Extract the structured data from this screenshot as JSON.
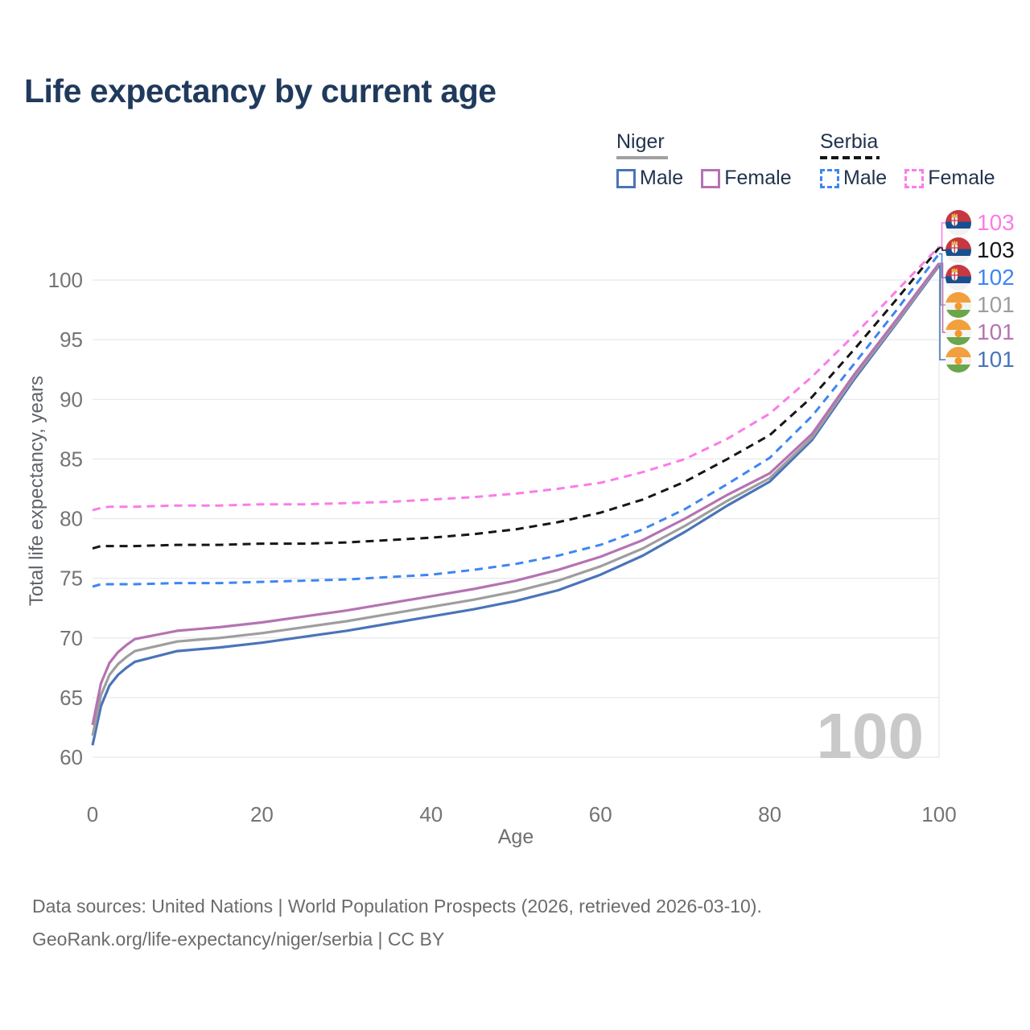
{
  "title": "Life expectancy by current age",
  "legend": {
    "groups": [
      {
        "title": "Niger",
        "line_style": "solid",
        "underline_color": "#a0a0a0",
        "items": [
          {
            "label": "Male",
            "color": "#4a74b9",
            "dashed": false
          },
          {
            "label": "Female",
            "color": "#b573b2",
            "dashed": false
          }
        ]
      },
      {
        "title": "Serbia",
        "line_style": "dashed",
        "underline_color": "#161616",
        "items": [
          {
            "label": "Male",
            "color": "#3e86f2",
            "dashed": true
          },
          {
            "label": "Female",
            "color": "#fa7ce9",
            "dashed": true
          }
        ]
      }
    ]
  },
  "watermark": "100",
  "chart_data": {
    "type": "line",
    "title": "Life expectancy by current age",
    "xlabel": "Age",
    "ylabel": "Total life expectancy, years",
    "x_ticks": [
      0,
      20,
      40,
      60,
      80,
      100
    ],
    "y_ticks": [
      60,
      65,
      70,
      75,
      80,
      85,
      90,
      95,
      100
    ],
    "xlim": [
      0,
      100
    ],
    "ylim": [
      60,
      100
    ],
    "grid": "horizontal",
    "legend_position": "top-right",
    "x": [
      0,
      1,
      2,
      3,
      4,
      5,
      10,
      15,
      20,
      25,
      30,
      35,
      40,
      45,
      50,
      55,
      60,
      65,
      70,
      75,
      80,
      85,
      90,
      95,
      100
    ],
    "series": [
      {
        "id": "niger_male",
        "name": "Niger Male",
        "color": "#4a74b9",
        "dashed": false,
        "values": [
          61.0,
          64.3,
          66.0,
          66.9,
          67.5,
          68.0,
          68.9,
          69.2,
          69.6,
          70.1,
          70.6,
          71.2,
          71.8,
          72.4,
          73.1,
          74.0,
          75.3,
          76.9,
          78.9,
          81.1,
          83.1,
          86.6,
          91.7,
          96.4,
          101.2
        ]
      },
      {
        "id": "niger_total",
        "name": "Niger",
        "color": "#9e9e9e",
        "dashed": false,
        "values": [
          61.8,
          65.2,
          66.9,
          67.8,
          68.4,
          68.9,
          69.7,
          70.0,
          70.4,
          70.9,
          71.4,
          72.0,
          72.6,
          73.2,
          73.9,
          74.8,
          76.0,
          77.5,
          79.4,
          81.5,
          83.4,
          86.8,
          91.9,
          96.5,
          101.3
        ]
      },
      {
        "id": "niger_female",
        "name": "Niger Female",
        "color": "#b573b2",
        "dashed": false,
        "values": [
          62.7,
          66.2,
          67.9,
          68.8,
          69.4,
          69.9,
          70.6,
          70.9,
          71.3,
          71.8,
          72.3,
          72.9,
          73.5,
          74.1,
          74.8,
          75.7,
          76.8,
          78.2,
          80.0,
          82.0,
          83.8,
          87.1,
          92.1,
          96.7,
          101.4
        ]
      },
      {
        "id": "serbia_male",
        "name": "Serbia Male",
        "color": "#3e86f2",
        "dashed": true,
        "values": [
          74.3,
          74.5,
          74.5,
          74.5,
          74.5,
          74.5,
          74.6,
          74.6,
          74.7,
          74.8,
          74.9,
          75.1,
          75.3,
          75.7,
          76.2,
          76.9,
          77.8,
          79.1,
          80.8,
          82.9,
          85.1,
          88.6,
          93.0,
          97.5,
          102.2
        ]
      },
      {
        "id": "serbia_total",
        "name": "Serbia",
        "color": "#161616",
        "dashed": true,
        "values": [
          77.5,
          77.7,
          77.7,
          77.7,
          77.7,
          77.7,
          77.8,
          77.8,
          77.9,
          77.9,
          78.0,
          78.2,
          78.4,
          78.7,
          79.1,
          79.7,
          80.5,
          81.6,
          83.1,
          85.0,
          87.0,
          90.2,
          94.2,
          98.4,
          102.7
        ]
      },
      {
        "id": "serbia_female",
        "name": "Serbia Female",
        "color": "#fa7ce9",
        "dashed": true,
        "values": [
          80.7,
          80.9,
          81.0,
          81.0,
          81.0,
          81.0,
          81.1,
          81.1,
          81.2,
          81.2,
          81.3,
          81.4,
          81.6,
          81.8,
          82.1,
          82.5,
          83.0,
          83.9,
          85.0,
          86.7,
          88.8,
          91.9,
          95.4,
          99.1,
          102.8
        ]
      }
    ]
  },
  "end_labels": [
    {
      "value": "103",
      "color": "#fa7ce9",
      "flag": "serbia",
      "series": "serbia_female"
    },
    {
      "value": "103",
      "color": "#161616",
      "flag": "serbia",
      "series": "serbia_total"
    },
    {
      "value": "102",
      "color": "#3e86f2",
      "flag": "serbia",
      "series": "serbia_male"
    },
    {
      "value": "101",
      "color": "#9e9e9e",
      "flag": "niger",
      "series": "niger_total"
    },
    {
      "value": "101",
      "color": "#b573b2",
      "flag": "niger",
      "series": "niger_female"
    },
    {
      "value": "101",
      "color": "#4a74b9",
      "flag": "niger",
      "series": "niger_male"
    }
  ],
  "footer": {
    "line1": "Data sources: United Nations | World Population Prospects (2026, retrieved 2026-03-10).",
    "line2": "GeoRank.org/life-expectancy/niger/serbia | CC BY"
  },
  "colors": {
    "title": "#1f3a5c",
    "tick_text": "#747474",
    "gridline": "#e8e8e8",
    "watermark": "#c9c9c9",
    "footer_text": "#6b6b6b"
  }
}
